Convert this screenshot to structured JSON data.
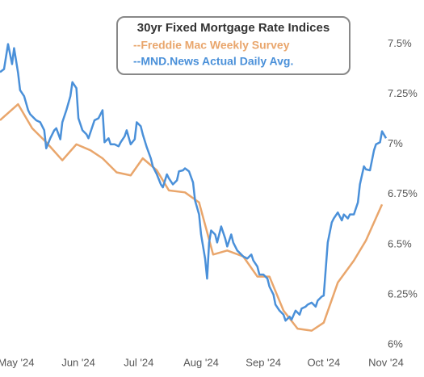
{
  "chart_data": {
    "type": "line",
    "title": "30yr Fixed Mortgage Rate Indices",
    "xlim": [
      -8,
      186
    ],
    "xticks": [
      {
        "value": 0,
        "label": "May '24"
      },
      {
        "value": 31,
        "label": "Jun '24"
      },
      {
        "value": 61,
        "label": "Jul '24"
      },
      {
        "value": 92,
        "label": "Aug '24"
      },
      {
        "value": 123,
        "label": "Sep '24"
      },
      {
        "value": 153,
        "label": "Oct '24"
      },
      {
        "value": 184,
        "label": "Nov '24"
      }
    ],
    "ylim": [
      5.95,
      7.72
    ],
    "yticks": [
      {
        "value": 6,
        "label": "6%"
      },
      {
        "value": 6.25,
        "label": "6.25%"
      },
      {
        "value": 6.5,
        "label": "6.5%"
      },
      {
        "value": 6.75,
        "label": "6.75%"
      },
      {
        "value": 7,
        "label": "7%"
      },
      {
        "value": 7.25,
        "label": "7.25%"
      },
      {
        "value": 7.5,
        "label": "7.5%"
      }
    ],
    "series": [
      {
        "name": "--Freddie Mac Weekly Survey",
        "color": "#e9a66c",
        "x": [
          -8,
          1,
          8,
          15,
          23,
          30,
          37,
          43,
          50,
          57,
          63,
          70,
          76,
          84,
          91,
          98,
          105,
          113,
          120,
          126,
          133,
          140,
          147,
          153,
          160,
          168,
          174,
          182
        ],
        "values": [
          7.12,
          7.2,
          7.08,
          7.01,
          6.92,
          7.0,
          6.97,
          6.93,
          6.86,
          6.845,
          6.93,
          6.87,
          6.77,
          6.76,
          6.71,
          6.45,
          6.47,
          6.44,
          6.34,
          6.34,
          6.17,
          6.08,
          6.07,
          6.11,
          6.31,
          6.42,
          6.52,
          6.7
        ]
      },
      {
        "name": "--MND.News Actual Daily Avg.",
        "color": "#4a90d9",
        "x": [
          -8,
          -6,
          -4,
          -2,
          -1,
          1,
          2,
          4,
          6,
          7,
          9,
          10,
          12,
          14,
          15,
          17,
          19,
          20,
          22,
          23,
          25,
          27,
          28,
          30,
          31,
          33,
          35,
          36,
          38,
          39,
          41,
          43,
          44,
          46,
          47,
          49,
          51,
          52,
          54,
          55,
          57,
          59,
          60,
          62,
          63,
          65,
          67,
          68,
          70,
          72,
          73,
          75,
          76,
          78,
          80,
          81,
          83,
          84,
          86,
          88,
          89,
          91,
          92,
          94,
          95,
          96,
          97,
          99,
          100,
          102,
          104,
          105,
          107,
          108,
          110,
          112,
          113,
          115,
          117,
          118,
          120,
          121,
          123,
          125,
          126,
          128,
          129,
          131,
          133,
          134,
          136,
          137,
          139,
          141,
          142,
          144,
          145,
          147,
          149,
          150,
          152,
          153,
          155,
          157,
          158,
          160,
          162,
          163,
          165,
          166,
          168,
          170,
          171,
          173,
          174,
          176,
          178,
          179,
          181,
          182,
          184
        ],
        "values": [
          7.36,
          7.375,
          7.5,
          7.4,
          7.48,
          7.355,
          7.27,
          7.24,
          7.17,
          7.15,
          7.13,
          7.12,
          7.11,
          7.07,
          6.98,
          7.03,
          7.07,
          7.08,
          7.025,
          7.11,
          7.17,
          7.24,
          7.31,
          7.28,
          7.13,
          7.07,
          7.05,
          7.03,
          7.09,
          7.12,
          7.13,
          7.17,
          7.01,
          7.03,
          7.0,
          7.0,
          6.99,
          7.01,
          7.04,
          7.07,
          7.0,
          7.025,
          7.11,
          7.09,
          7.05,
          6.985,
          6.93,
          6.89,
          6.85,
          6.8,
          6.785,
          6.85,
          6.83,
          6.8,
          6.82,
          6.865,
          6.87,
          6.88,
          6.865,
          6.81,
          6.72,
          6.65,
          6.55,
          6.43,
          6.33,
          6.51,
          6.57,
          6.55,
          6.51,
          6.59,
          6.53,
          6.49,
          6.55,
          6.51,
          6.47,
          6.45,
          6.44,
          6.43,
          6.45,
          6.42,
          6.39,
          6.35,
          6.35,
          6.33,
          6.29,
          6.25,
          6.2,
          6.17,
          6.15,
          6.12,
          6.14,
          6.125,
          6.17,
          6.15,
          6.18,
          6.19,
          6.2,
          6.21,
          6.19,
          6.22,
          6.24,
          6.245,
          6.51,
          6.61,
          6.63,
          6.66,
          6.62,
          6.65,
          6.63,
          6.65,
          6.65,
          6.71,
          6.8,
          6.89,
          6.875,
          6.87,
          6.97,
          7.0,
          7.01,
          7.065,
          7.03
        ]
      }
    ]
  }
}
